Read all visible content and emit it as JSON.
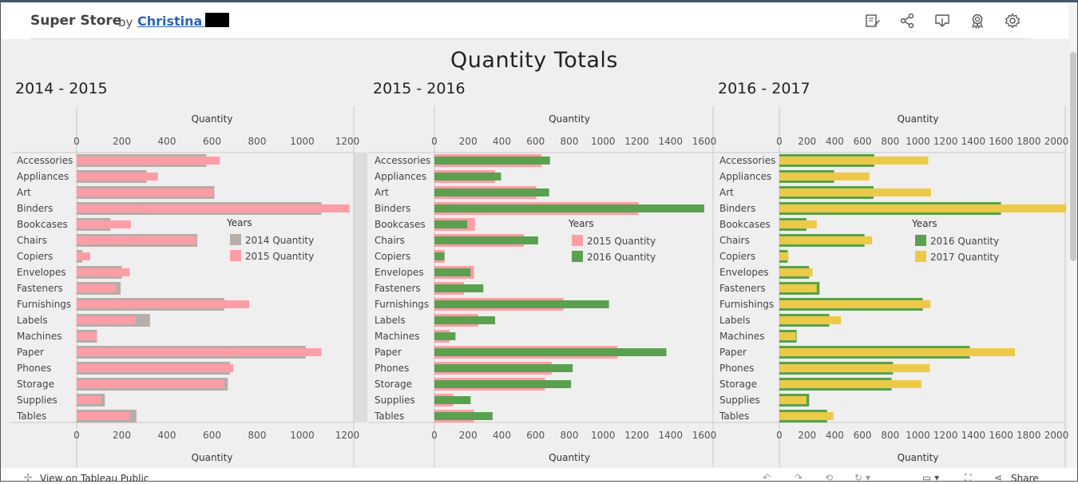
{
  "header": {
    "brand": "Super Store",
    "by": "by",
    "author": "Christina S",
    "icons": [
      "edit-icon",
      "share-icon",
      "download-icon",
      "badge-icon",
      "settings-icon"
    ]
  },
  "dashboard": {
    "title": "Quantity Totals"
  },
  "footer": {
    "link": "View on Tableau Public",
    "share": "Share"
  },
  "colors": {
    "y2014": "#b5aea9",
    "y2015": "#ff9da7",
    "y2016": "#59a14f",
    "y2017": "#edc948",
    "brand_line": "#1f5fa8"
  },
  "chart_data": [
    {
      "type": "bar",
      "title": "2014 - 2015",
      "xlabel": "Quantity",
      "xlim": [
        0,
        1200
      ],
      "ticks": [
        0,
        200,
        400,
        600,
        800,
        1000,
        1200
      ],
      "legend_title": "Years",
      "categories": [
        "Accessories",
        "Appliances",
        "Art",
        "Binders",
        "Bookcases",
        "Chairs",
        "Copiers",
        "Envelopes",
        "Fasteners",
        "Furnishings",
        "Labels",
        "Machines",
        "Paper",
        "Phones",
        "Storage",
        "Supplies",
        "Tables"
      ],
      "series": [
        {
          "name": "2014 Quantity",
          "color": "#b5aea9",
          "values": [
            575,
            310,
            610,
            1085,
            150,
            535,
            25,
            200,
            195,
            655,
            325,
            90,
            1015,
            680,
            670,
            125,
            265
          ]
        },
        {
          "name": "2015 Quantity",
          "color": "#ff9da7",
          "values": [
            635,
            360,
            605,
            1210,
            240,
            530,
            60,
            235,
            175,
            765,
            260,
            90,
            1085,
            695,
            655,
            110,
            235
          ]
        }
      ]
    },
    {
      "type": "bar",
      "title": "2015 - 2016",
      "xlabel": "Quantity",
      "xlim": [
        0,
        1600
      ],
      "ticks": [
        0,
        200,
        400,
        600,
        800,
        1000,
        1200,
        1400,
        1600
      ],
      "legend_title": "Years",
      "categories": [
        "Accessories",
        "Appliances",
        "Art",
        "Binders",
        "Bookcases",
        "Chairs",
        "Copiers",
        "Envelopes",
        "Fasteners",
        "Furnishings",
        "Labels",
        "Machines",
        "Paper",
        "Phones",
        "Storage",
        "Supplies",
        "Tables"
      ],
      "series": [
        {
          "name": "2015 Quantity",
          "color": "#ff9da7",
          "values": [
            635,
            360,
            605,
            1210,
            240,
            530,
            60,
            235,
            175,
            765,
            260,
            90,
            1085,
            695,
            655,
            110,
            235
          ]
        },
        {
          "name": "2016 Quantity",
          "color": "#59a14f",
          "values": [
            685,
            395,
            680,
            1600,
            195,
            615,
            60,
            215,
            290,
            1035,
            360,
            125,
            1375,
            820,
            810,
            215,
            345
          ]
        }
      ]
    },
    {
      "type": "bar",
      "title": "2016 - 2017",
      "xlabel": "Quantity",
      "xlim": [
        0,
        2000
      ],
      "ticks": [
        0,
        200,
        400,
        600,
        800,
        1000,
        1200,
        1400,
        1600,
        1800,
        2000
      ],
      "legend_title": "Years",
      "categories": [
        "Accessories",
        "Appliances",
        "Art",
        "Binders",
        "Bookcases",
        "Chairs",
        "Copiers",
        "Envelopes",
        "Fasteners",
        "Furnishings",
        "Labels",
        "Machines",
        "Paper",
        "Phones",
        "Storage",
        "Supplies",
        "Tables"
      ],
      "series": [
        {
          "name": "2016 Quantity",
          "color": "#59a14f",
          "values": [
            685,
            395,
            680,
            1600,
            195,
            615,
            60,
            215,
            290,
            1035,
            360,
            125,
            1375,
            820,
            810,
            215,
            345
          ]
        },
        {
          "name": "2017 Quantity",
          "color": "#edc948",
          "values": [
            1075,
            650,
            1095,
            2070,
            270,
            670,
            65,
            240,
            270,
            1090,
            445,
            120,
            1700,
            1085,
            1025,
            195,
            390
          ]
        }
      ]
    }
  ]
}
